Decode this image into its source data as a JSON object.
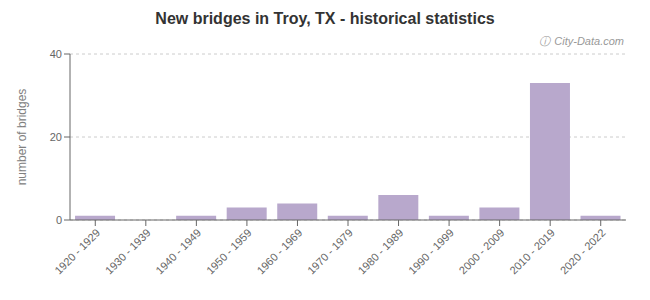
{
  "chart_data": {
    "type": "bar",
    "title": "New bridges in Troy, TX - historical statistics",
    "ylabel": "number of bridges",
    "categories": [
      "1920 - 1929",
      "1930 - 1939",
      "1940 - 1949",
      "1950 - 1959",
      "1960 - 1969",
      "1970 - 1979",
      "1980 - 1989",
      "1990 - 1999",
      "2000 - 2009",
      "2010 - 2019",
      "2020 - 2022"
    ],
    "values": [
      1,
      0,
      1,
      3,
      4,
      1,
      6,
      1,
      3,
      33,
      1
    ],
    "color": "#b8a8cc",
    "ylim": [
      0,
      40
    ],
    "yticks": [
      0,
      20,
      40
    ],
    "grid": true,
    "annotations": [
      "ⓘ",
      "City-Data.com"
    ]
  }
}
